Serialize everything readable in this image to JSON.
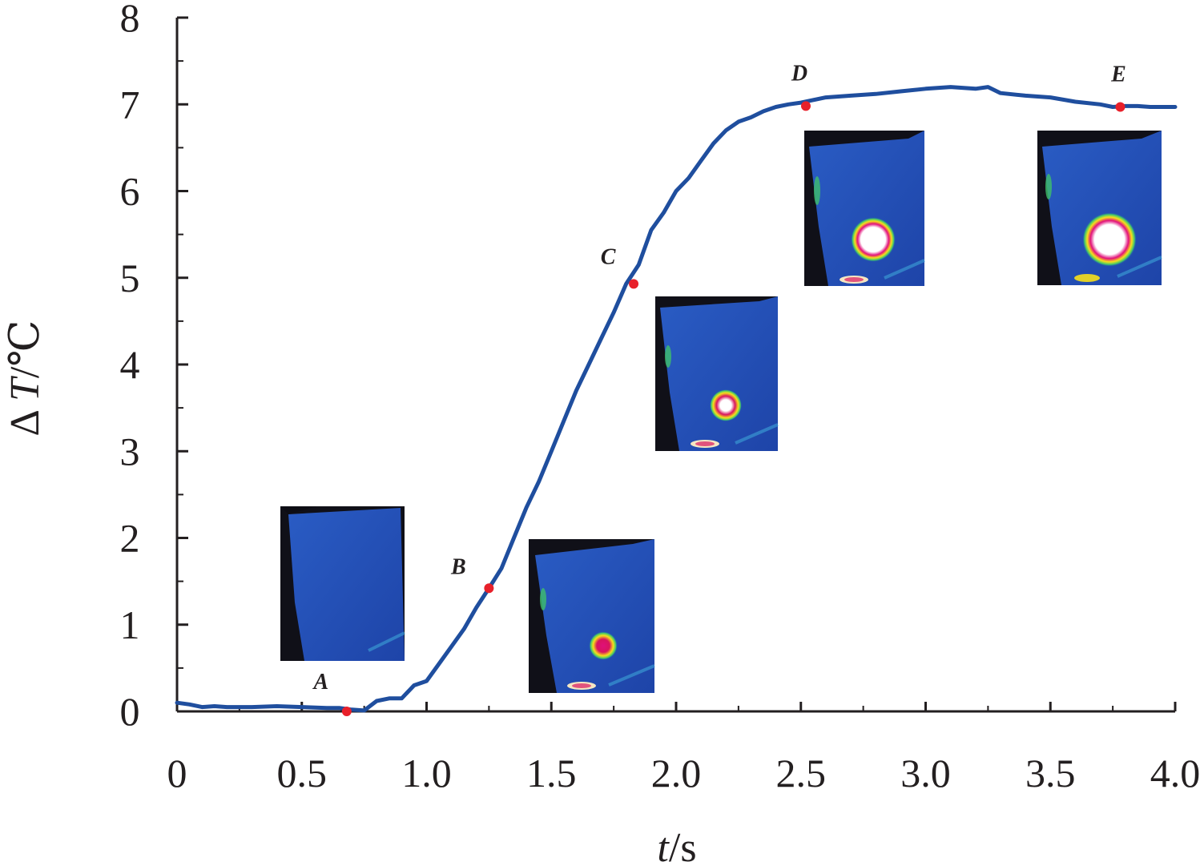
{
  "chart_data": {
    "type": "line",
    "title": "",
    "xlabel_var": "t",
    "xlabel_unit": "/s",
    "ylabel_prefix": "Δ ",
    "ylabel_var": "T",
    "ylabel_unit": "/℃",
    "xlim": [
      0,
      4.0
    ],
    "ylim": [
      0,
      8
    ],
    "x_ticks": [
      0,
      0.5,
      1.0,
      1.5,
      2.0,
      2.5,
      3.0,
      3.5,
      4.0
    ],
    "x_tick_labels": [
      "0",
      "0.5",
      "1.0",
      "1.5",
      "2.0",
      "2.5",
      "3.0",
      "3.5",
      "4.0"
    ],
    "y_ticks": [
      0,
      1,
      2,
      3,
      4,
      5,
      6,
      7,
      8
    ],
    "y_tick_labels": [
      "0",
      "1",
      "2",
      "3",
      "4",
      "5",
      "6",
      "7",
      "8"
    ],
    "grid": false,
    "line_color": "#1f4e9e",
    "marker_color": "#e8202a",
    "series": [
      {
        "x": [
          0,
          0.05,
          0.1,
          0.15,
          0.2,
          0.3,
          0.4,
          0.5,
          0.6,
          0.65,
          0.7,
          0.75,
          0.8,
          0.85,
          0.9,
          0.95,
          1.0,
          1.05,
          1.1,
          1.15,
          1.2,
          1.25,
          1.3,
          1.35,
          1.4,
          1.45,
          1.5,
          1.55,
          1.6,
          1.65,
          1.7,
          1.75,
          1.8,
          1.85,
          1.9,
          1.95,
          2.0,
          2.05,
          2.1,
          2.15,
          2.2,
          2.25,
          2.3,
          2.35,
          2.4,
          2.45,
          2.5,
          2.55,
          2.6,
          2.7,
          2.8,
          2.9,
          3.0,
          3.1,
          3.2,
          3.25,
          3.3,
          3.4,
          3.5,
          3.6,
          3.7,
          3.75,
          3.8,
          3.85,
          3.9,
          4.0
        ],
        "y": [
          0.1,
          0.08,
          0.05,
          0.06,
          0.05,
          0.05,
          0.06,
          0.05,
          0.04,
          0.04,
          0.02,
          0.01,
          0.12,
          0.15,
          0.15,
          0.3,
          0.35,
          0.55,
          0.75,
          0.95,
          1.2,
          1.42,
          1.65,
          2.0,
          2.35,
          2.65,
          3.0,
          3.35,
          3.7,
          4.0,
          4.3,
          4.6,
          4.93,
          5.15,
          5.55,
          5.75,
          6.0,
          6.15,
          6.35,
          6.55,
          6.7,
          6.8,
          6.85,
          6.92,
          6.97,
          7.0,
          7.02,
          7.05,
          7.08,
          7.1,
          7.12,
          7.15,
          7.18,
          7.2,
          7.18,
          7.2,
          7.13,
          7.1,
          7.08,
          7.03,
          7.0,
          6.97,
          6.98,
          6.98,
          6.97,
          6.97
        ]
      }
    ],
    "points": [
      {
        "label": "A",
        "x": 0.68,
        "y": 0.0
      },
      {
        "label": "B",
        "x": 1.25,
        "y": 1.42
      },
      {
        "label": "C",
        "x": 1.83,
        "y": 4.93
      },
      {
        "label": "D",
        "x": 2.52,
        "y": 6.98
      },
      {
        "label": "E",
        "x": 3.78,
        "y": 6.97
      }
    ]
  }
}
